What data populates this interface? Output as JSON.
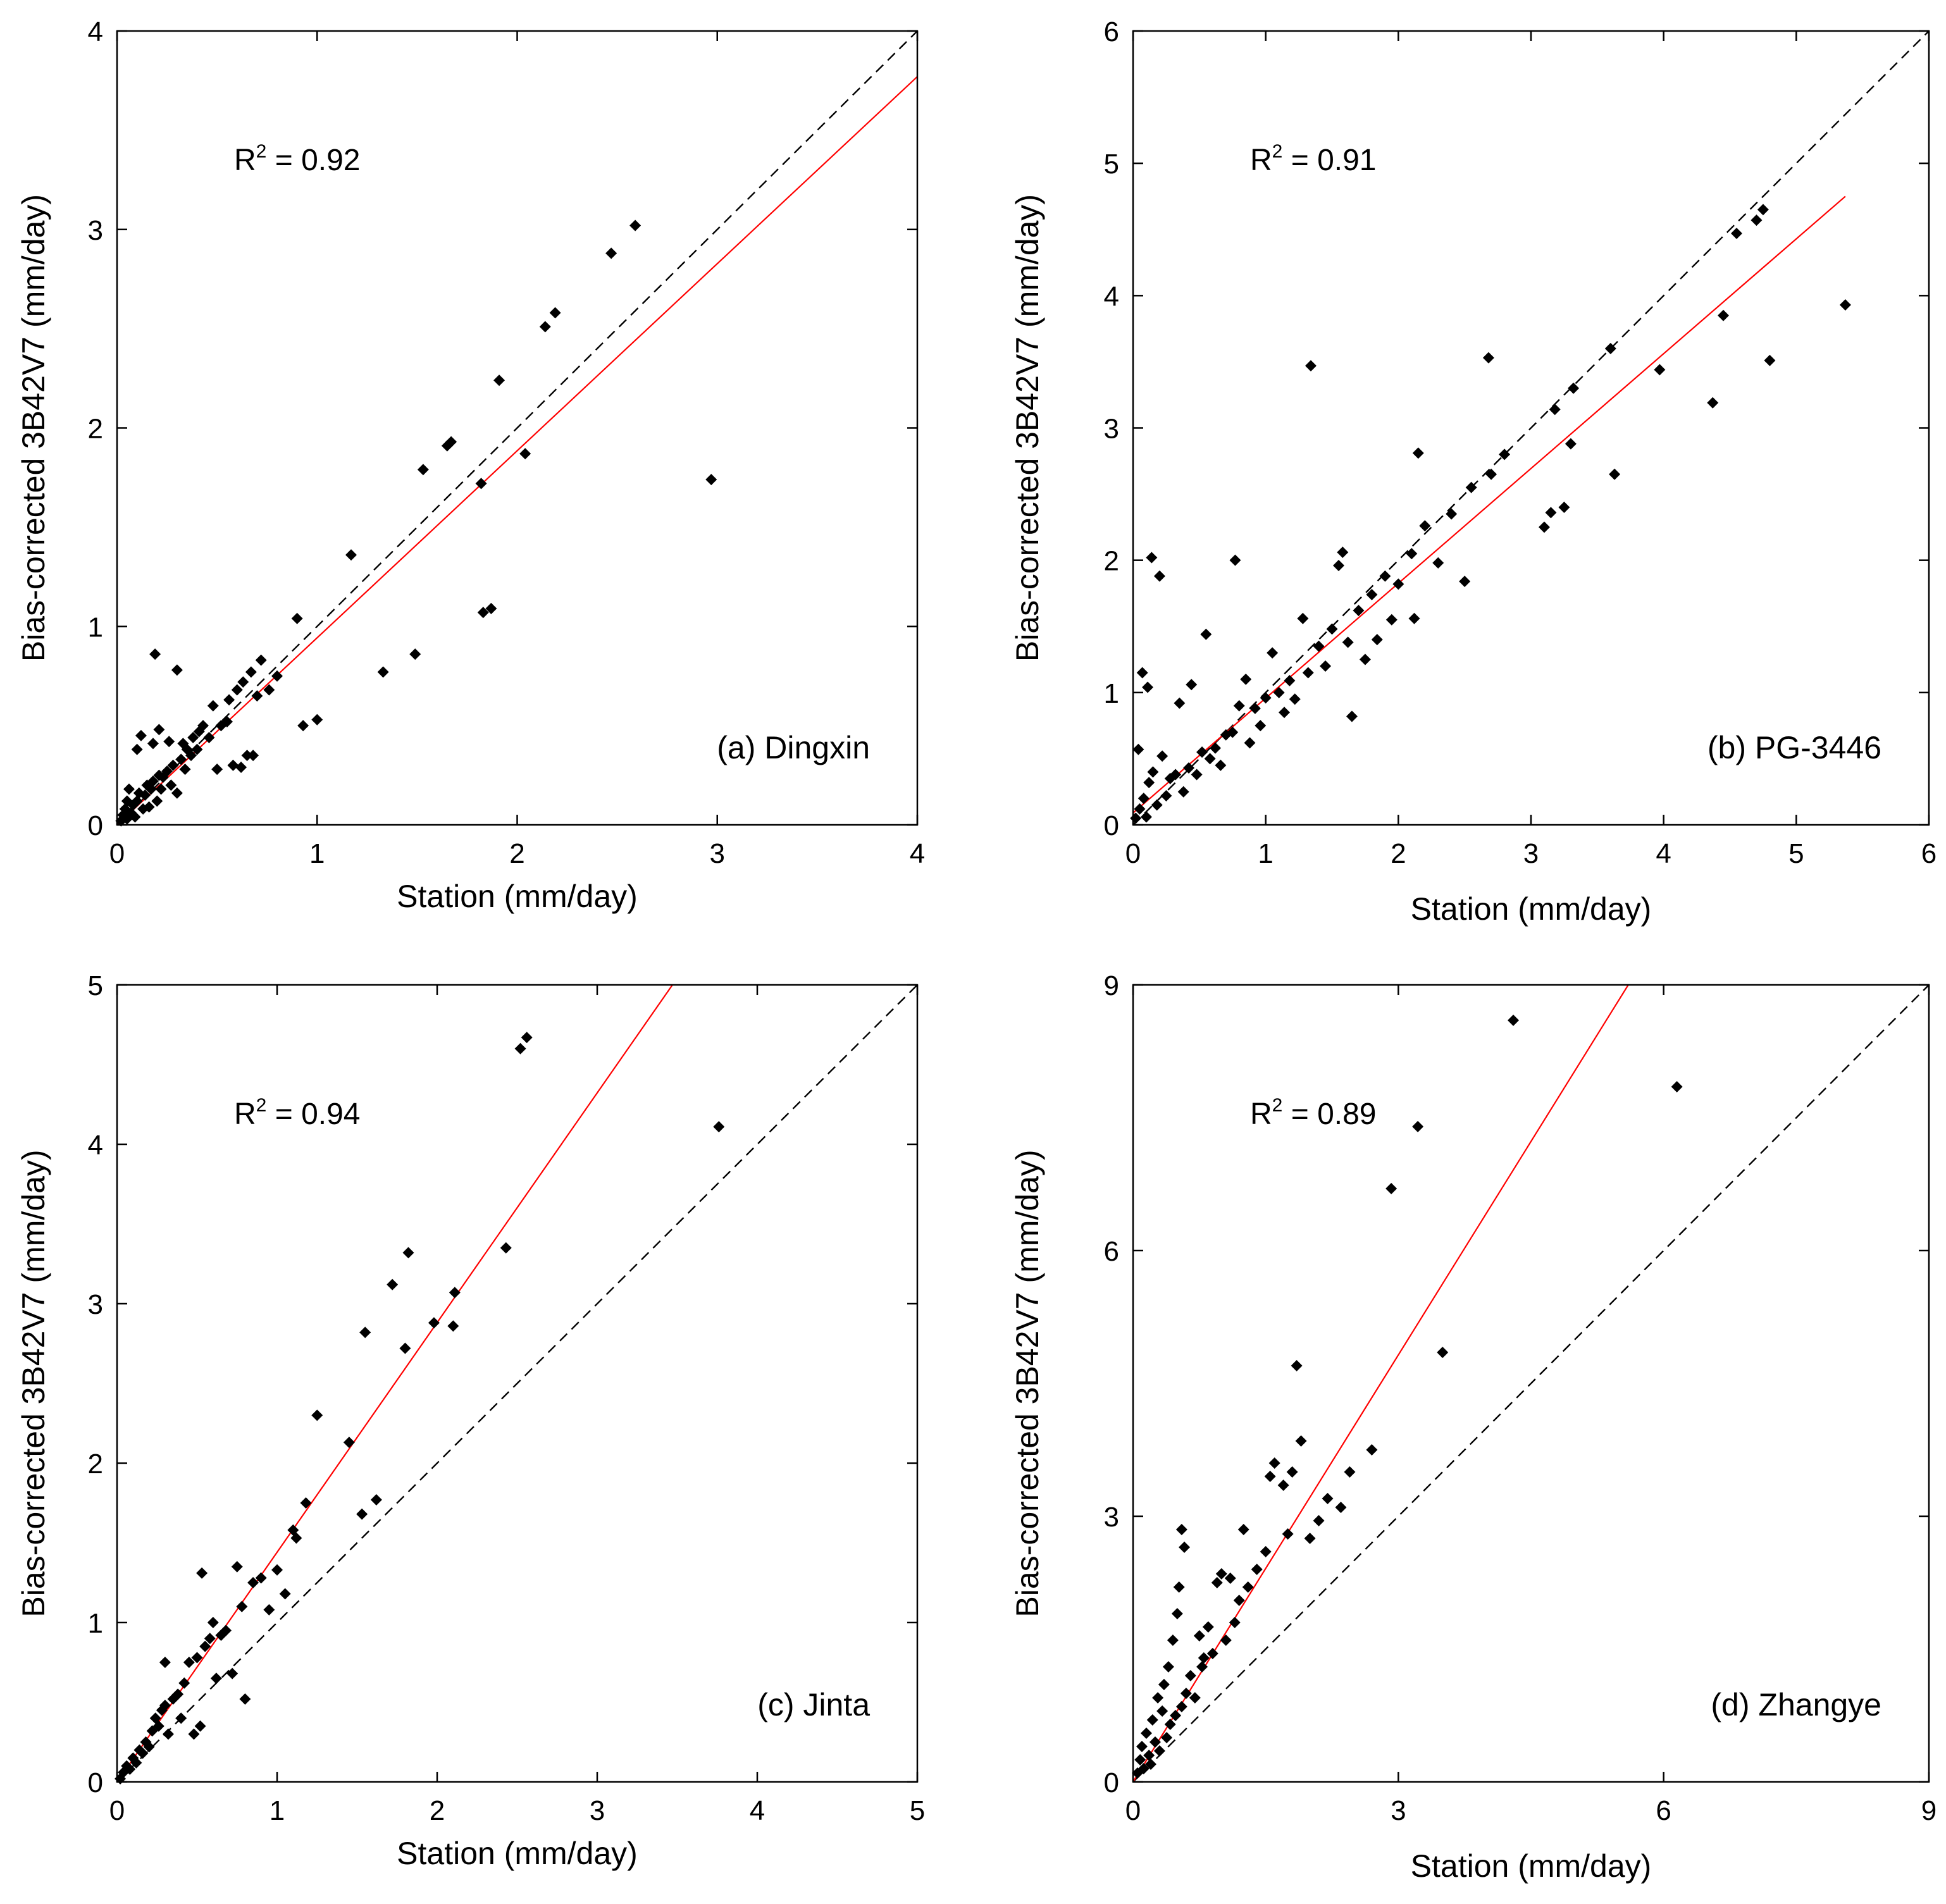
{
  "figure": {
    "colors": {
      "points": "#000000",
      "fit_line": "#ff0000",
      "identity_line": "#000000",
      "axes": "#000000"
    }
  },
  "chart_data": [
    {
      "type": "scatter",
      "panel_label": "(a) Dingxin",
      "r2_base": "R",
      "r2_sup": "2",
      "r2_value": " = 0.92",
      "xlabel": "Station (mm/day)",
      "ylabel": "Bias-corrected 3B42V7 (mm/day)",
      "xlim": [
        0,
        4
      ],
      "ylim": [
        0,
        4
      ],
      "xticks": [
        0,
        1,
        2,
        3,
        4
      ],
      "yticks": [
        0,
        1,
        2,
        3,
        4
      ],
      "identity_line": [
        [
          0,
          0
        ],
        [
          4,
          4
        ]
      ],
      "fit_line": [
        [
          0,
          0
        ],
        [
          4,
          3.77
        ]
      ],
      "points": [
        [
          0.02,
          0.02
        ],
        [
          0.03,
          0.05
        ],
        [
          0.04,
          0.08
        ],
        [
          0.05,
          0.03
        ],
        [
          0.05,
          0.12
        ],
        [
          0.06,
          0.18
        ],
        [
          0.07,
          0.06
        ],
        [
          0.08,
          0.1
        ],
        [
          0.09,
          0.04
        ],
        [
          0.1,
          0.12
        ],
        [
          0.1,
          0.38
        ],
        [
          0.11,
          0.16
        ],
        [
          0.12,
          0.45
        ],
        [
          0.13,
          0.08
        ],
        [
          0.14,
          0.15
        ],
        [
          0.15,
          0.2
        ],
        [
          0.16,
          0.09
        ],
        [
          0.17,
          0.18
        ],
        [
          0.18,
          0.22
        ],
        [
          0.18,
          0.41
        ],
        [
          0.19,
          0.86
        ],
        [
          0.2,
          0.12
        ],
        [
          0.21,
          0.25
        ],
        [
          0.21,
          0.48
        ],
        [
          0.22,
          0.18
        ],
        [
          0.23,
          0.24
        ],
        [
          0.25,
          0.27
        ],
        [
          0.26,
          0.42
        ],
        [
          0.27,
          0.2
        ],
        [
          0.28,
          0.3
        ],
        [
          0.3,
          0.16
        ],
        [
          0.3,
          0.78
        ],
        [
          0.32,
          0.33
        ],
        [
          0.33,
          0.41
        ],
        [
          0.34,
          0.28
        ],
        [
          0.35,
          0.38
        ],
        [
          0.37,
          0.35
        ],
        [
          0.38,
          0.44
        ],
        [
          0.4,
          0.38
        ],
        [
          0.41,
          0.47
        ],
        [
          0.43,
          0.5
        ],
        [
          0.46,
          0.44
        ],
        [
          0.48,
          0.6
        ],
        [
          0.5,
          0.28
        ],
        [
          0.52,
          0.5
        ],
        [
          0.55,
          0.52
        ],
        [
          0.56,
          0.63
        ],
        [
          0.58,
          0.3
        ],
        [
          0.6,
          0.68
        ],
        [
          0.62,
          0.29
        ],
        [
          0.63,
          0.72
        ],
        [
          0.65,
          0.35
        ],
        [
          0.67,
          0.77
        ],
        [
          0.68,
          0.35
        ],
        [
          0.7,
          0.65
        ],
        [
          0.72,
          0.83
        ],
        [
          0.76,
          0.68
        ],
        [
          0.8,
          0.75
        ],
        [
          0.9,
          1.04
        ],
        [
          0.93,
          0.5
        ],
        [
          1.0,
          0.53
        ],
        [
          1.17,
          1.36
        ],
        [
          1.33,
          0.77
        ],
        [
          1.49,
          0.86
        ],
        [
          1.53,
          1.79
        ],
        [
          1.65,
          1.91
        ],
        [
          1.67,
          1.93
        ],
        [
          1.82,
          1.72
        ],
        [
          1.83,
          1.07
        ],
        [
          1.87,
          1.09
        ],
        [
          1.91,
          2.24
        ],
        [
          2.04,
          1.87
        ],
        [
          2.14,
          2.51
        ],
        [
          2.19,
          2.58
        ],
        [
          2.47,
          2.88
        ],
        [
          2.59,
          3.02
        ],
        [
          2.97,
          1.74
        ]
      ]
    },
    {
      "type": "scatter",
      "panel_label": "(b) PG-3446",
      "r2_base": "R",
      "r2_sup": "2",
      "r2_value": " = 0.91",
      "xlabel": "Station (mm/day)",
      "ylabel": "Bias-corrected 3B42V7 (mm/day)",
      "xlim": [
        0,
        6
      ],
      "ylim": [
        0,
        6
      ],
      "xticks": [
        0,
        1,
        2,
        3,
        4,
        5,
        6
      ],
      "yticks": [
        0,
        1,
        2,
        3,
        4,
        5,
        6
      ],
      "identity_line": [
        [
          0,
          0
        ],
        [
          6,
          6
        ]
      ],
      "fit_line": [
        [
          0,
          0.09
        ],
        [
          5.37,
          4.75
        ]
      ],
      "points": [
        [
          0.02,
          0.05
        ],
        [
          0.04,
          0.57
        ],
        [
          0.05,
          0.12
        ],
        [
          0.07,
          1.15
        ],
        [
          0.08,
          0.2
        ],
        [
          0.1,
          0.06
        ],
        [
          0.11,
          1.04
        ],
        [
          0.12,
          0.32
        ],
        [
          0.14,
          2.02
        ],
        [
          0.15,
          0.4
        ],
        [
          0.18,
          0.15
        ],
        [
          0.2,
          1.88
        ],
        [
          0.22,
          0.52
        ],
        [
          0.25,
          0.22
        ],
        [
          0.28,
          0.35
        ],
        [
          0.32,
          0.38
        ],
        [
          0.35,
          0.92
        ],
        [
          0.38,
          0.25
        ],
        [
          0.42,
          0.43
        ],
        [
          0.44,
          1.06
        ],
        [
          0.48,
          0.38
        ],
        [
          0.52,
          0.55
        ],
        [
          0.55,
          1.44
        ],
        [
          0.58,
          0.5
        ],
        [
          0.62,
          0.58
        ],
        [
          0.66,
          0.45
        ],
        [
          0.7,
          0.68
        ],
        [
          0.75,
          0.7
        ],
        [
          0.77,
          2.0
        ],
        [
          0.8,
          0.9
        ],
        [
          0.85,
          1.1
        ],
        [
          0.88,
          0.62
        ],
        [
          0.92,
          0.88
        ],
        [
          0.96,
          0.75
        ],
        [
          1.0,
          0.96
        ],
        [
          1.05,
          1.3
        ],
        [
          1.1,
          1.0
        ],
        [
          1.14,
          0.85
        ],
        [
          1.18,
          1.09
        ],
        [
          1.22,
          0.95
        ],
        [
          1.28,
          1.56
        ],
        [
          1.32,
          1.15
        ],
        [
          1.34,
          3.47
        ],
        [
          1.4,
          1.35
        ],
        [
          1.45,
          1.2
        ],
        [
          1.5,
          1.48
        ],
        [
          1.55,
          1.96
        ],
        [
          1.58,
          2.06
        ],
        [
          1.62,
          1.38
        ],
        [
          1.65,
          0.82
        ],
        [
          1.7,
          1.62
        ],
        [
          1.75,
          1.25
        ],
        [
          1.8,
          1.74
        ],
        [
          1.84,
          1.4
        ],
        [
          1.9,
          1.88
        ],
        [
          1.95,
          1.55
        ],
        [
          2.0,
          1.82
        ],
        [
          2.1,
          2.05
        ],
        [
          2.12,
          1.56
        ],
        [
          2.15,
          2.81
        ],
        [
          2.2,
          2.26
        ],
        [
          2.3,
          1.98
        ],
        [
          2.4,
          2.35
        ],
        [
          2.5,
          1.84
        ],
        [
          2.55,
          2.55
        ],
        [
          2.68,
          3.53
        ],
        [
          2.7,
          2.65
        ],
        [
          2.8,
          2.8
        ],
        [
          3.1,
          2.25
        ],
        [
          3.15,
          2.36
        ],
        [
          3.18,
          3.14
        ],
        [
          3.25,
          2.4
        ],
        [
          3.3,
          2.88
        ],
        [
          3.32,
          3.3
        ],
        [
          3.6,
          3.6
        ],
        [
          3.63,
          2.65
        ],
        [
          3.97,
          3.44
        ],
        [
          4.37,
          3.19
        ],
        [
          4.45,
          3.85
        ],
        [
          4.55,
          4.47
        ],
        [
          4.7,
          4.57
        ],
        [
          4.75,
          4.65
        ],
        [
          4.8,
          3.51
        ],
        [
          5.37,
          3.93
        ]
      ]
    },
    {
      "type": "scatter",
      "panel_label": "(c) Jinta",
      "r2_base": "R",
      "r2_sup": "2",
      "r2_value": " = 0.94",
      "xlabel": "Station (mm/day)",
      "ylabel": "Bias-corrected 3B42V7 (mm/day)",
      "xlim": [
        0,
        5
      ],
      "ylim": [
        0,
        5
      ],
      "xticks": [
        0,
        1,
        2,
        3,
        4,
        5
      ],
      "yticks": [
        0,
        1,
        2,
        3,
        4,
        5
      ],
      "identity_line": [
        [
          0,
          0
        ],
        [
          5,
          5
        ]
      ],
      "fit_line": [
        [
          0,
          0
        ],
        [
          3.47,
          5
        ]
      ],
      "points": [
        [
          0.02,
          0.02
        ],
        [
          0.04,
          0.06
        ],
        [
          0.06,
          0.1
        ],
        [
          0.08,
          0.08
        ],
        [
          0.1,
          0.15
        ],
        [
          0.12,
          0.12
        ],
        [
          0.14,
          0.2
        ],
        [
          0.16,
          0.18
        ],
        [
          0.18,
          0.25
        ],
        [
          0.2,
          0.22
        ],
        [
          0.22,
          0.32
        ],
        [
          0.24,
          0.4
        ],
        [
          0.26,
          0.35
        ],
        [
          0.28,
          0.45
        ],
        [
          0.3,
          0.48
        ],
        [
          0.3,
          0.75
        ],
        [
          0.32,
          0.3
        ],
        [
          0.35,
          0.52
        ],
        [
          0.38,
          0.55
        ],
        [
          0.4,
          0.4
        ],
        [
          0.42,
          0.62
        ],
        [
          0.45,
          0.75
        ],
        [
          0.48,
          0.3
        ],
        [
          0.5,
          0.78
        ],
        [
          0.52,
          0.35
        ],
        [
          0.53,
          1.31
        ],
        [
          0.55,
          0.85
        ],
        [
          0.58,
          0.9
        ],
        [
          0.6,
          1.0
        ],
        [
          0.62,
          0.65
        ],
        [
          0.65,
          0.92
        ],
        [
          0.68,
          0.95
        ],
        [
          0.72,
          0.68
        ],
        [
          0.75,
          1.35
        ],
        [
          0.78,
          1.1
        ],
        [
          0.8,
          0.52
        ],
        [
          0.85,
          1.25
        ],
        [
          0.9,
          1.28
        ],
        [
          0.95,
          1.08
        ],
        [
          1.0,
          1.33
        ],
        [
          1.05,
          1.18
        ],
        [
          1.1,
          1.58
        ],
        [
          1.12,
          1.53
        ],
        [
          1.18,
          1.75
        ],
        [
          1.25,
          2.3
        ],
        [
          1.45,
          2.13
        ],
        [
          1.53,
          1.68
        ],
        [
          1.55,
          2.82
        ],
        [
          1.62,
          1.77
        ],
        [
          1.72,
          3.12
        ],
        [
          1.8,
          2.72
        ],
        [
          1.82,
          3.32
        ],
        [
          1.98,
          2.88
        ],
        [
          2.1,
          2.86
        ],
        [
          2.11,
          3.07
        ],
        [
          2.43,
          3.35
        ],
        [
          2.52,
          4.6
        ],
        [
          2.56,
          4.67
        ],
        [
          3.76,
          4.11
        ]
      ]
    },
    {
      "type": "scatter",
      "panel_label": "(d) Zhangye",
      "r2_base": "R",
      "r2_sup": "2",
      "r2_value": " = 0.89",
      "xlabel": "Station (mm/day)",
      "ylabel": "Bias-corrected 3B42V7 (mm/day)",
      "xlim": [
        0,
        9
      ],
      "ylim": [
        0,
        9
      ],
      "xticks": [
        0,
        3,
        6,
        9
      ],
      "yticks": [
        0,
        3,
        6,
        9
      ],
      "identity_line": [
        [
          0,
          0
        ],
        [
          9,
          9
        ]
      ],
      "fit_line": [
        [
          0,
          0
        ],
        [
          5.6,
          9
        ]
      ],
      "points": [
        [
          0.05,
          0.1
        ],
        [
          0.08,
          0.25
        ],
        [
          0.1,
          0.4
        ],
        [
          0.12,
          0.15
        ],
        [
          0.15,
          0.55
        ],
        [
          0.18,
          0.3
        ],
        [
          0.2,
          0.2
        ],
        [
          0.22,
          0.7
        ],
        [
          0.25,
          0.45
        ],
        [
          0.28,
          0.95
        ],
        [
          0.3,
          0.35
        ],
        [
          0.33,
          0.8
        ],
        [
          0.35,
          1.1
        ],
        [
          0.38,
          0.5
        ],
        [
          0.4,
          1.3
        ],
        [
          0.42,
          0.65
        ],
        [
          0.45,
          1.6
        ],
        [
          0.48,
          0.75
        ],
        [
          0.5,
          1.9
        ],
        [
          0.52,
          2.2
        ],
        [
          0.55,
          0.85
        ],
        [
          0.55,
          2.85
        ],
        [
          0.58,
          2.65
        ],
        [
          0.6,
          1.0
        ],
        [
          0.65,
          1.2
        ],
        [
          0.7,
          0.95
        ],
        [
          0.75,
          1.65
        ],
        [
          0.78,
          1.3
        ],
        [
          0.8,
          1.4
        ],
        [
          0.85,
          1.75
        ],
        [
          0.9,
          1.45
        ],
        [
          0.95,
          2.25
        ],
        [
          1.0,
          2.35
        ],
        [
          1.05,
          1.6
        ],
        [
          1.1,
          2.3
        ],
        [
          1.15,
          1.8
        ],
        [
          1.2,
          2.05
        ],
        [
          1.25,
          2.85
        ],
        [
          1.3,
          2.2
        ],
        [
          1.4,
          2.4
        ],
        [
          1.5,
          2.6
        ],
        [
          1.55,
          3.45
        ],
        [
          1.6,
          3.6
        ],
        [
          1.7,
          3.35
        ],
        [
          1.75,
          2.8
        ],
        [
          1.8,
          3.5
        ],
        [
          1.85,
          4.7
        ],
        [
          1.9,
          3.85
        ],
        [
          2.0,
          2.75
        ],
        [
          2.1,
          2.95
        ],
        [
          2.2,
          3.2
        ],
        [
          2.35,
          3.1
        ],
        [
          2.45,
          3.5
        ],
        [
          2.7,
          3.75
        ],
        [
          2.92,
          6.7
        ],
        [
          3.22,
          7.4
        ],
        [
          3.5,
          4.85
        ],
        [
          4.3,
          8.6
        ],
        [
          6.15,
          7.85
        ]
      ]
    }
  ]
}
